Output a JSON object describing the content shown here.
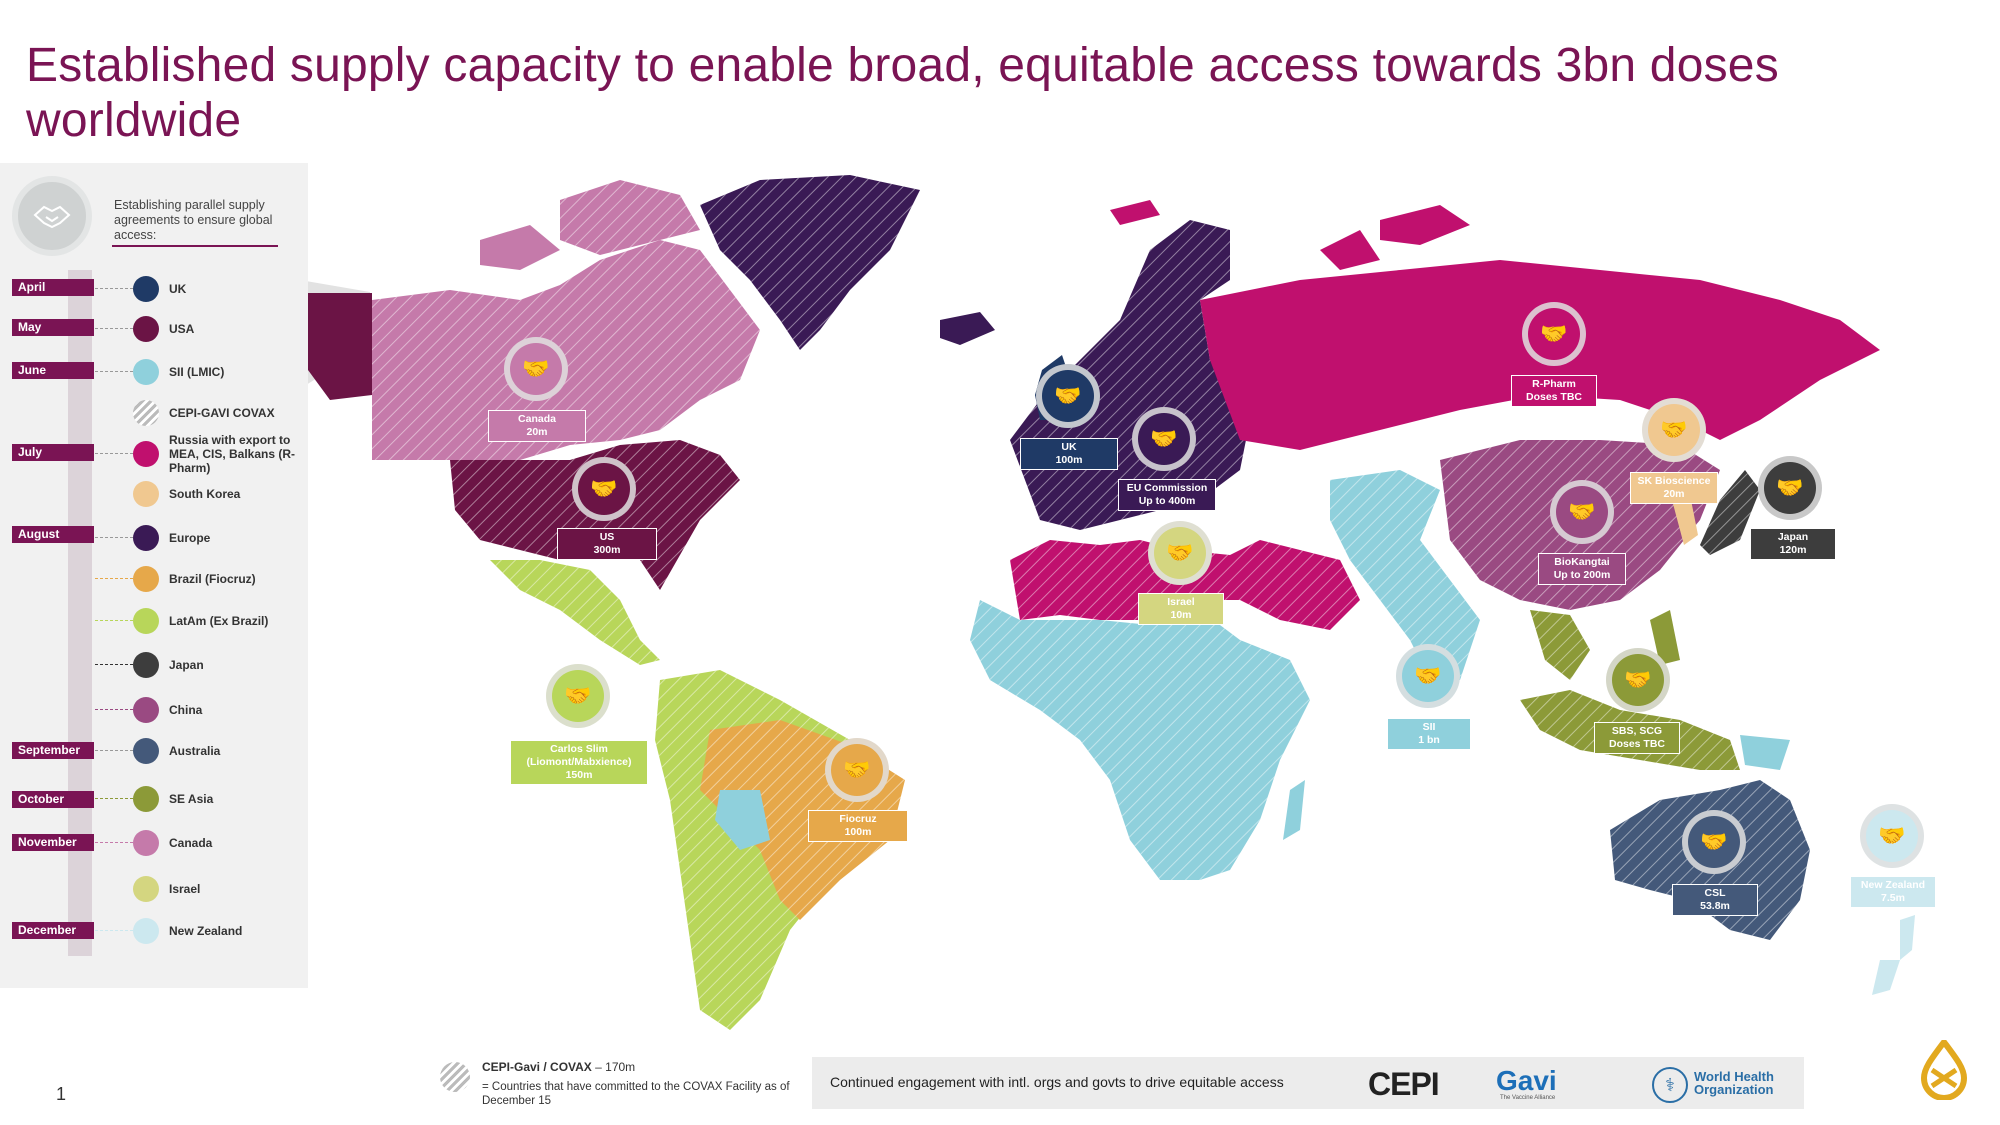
{
  "title": "Established supply capacity to enable broad, equitable access towards 3bn doses worldwide",
  "legend": {
    "heading": "Establishing parallel supply agreements to ensure global access:",
    "heading_icon": "handshake-icon",
    "months": [
      {
        "label": "April"
      },
      {
        "label": "May"
      },
      {
        "label": "June"
      },
      {
        "label": "July"
      },
      {
        "label": "August"
      },
      {
        "label": "September"
      },
      {
        "label": "October"
      },
      {
        "label": "November"
      },
      {
        "label": "December"
      }
    ],
    "items": [
      {
        "label": "UK",
        "color": "#1f3a66"
      },
      {
        "label": "USA",
        "color": "#6b1445"
      },
      {
        "label": "SII (LMIC)",
        "color": "#8fd0dc"
      },
      {
        "label": "CEPI-GAVI COVAX",
        "color": "hatched"
      },
      {
        "label": "Russia with export to MEA, CIS, Balkans (R-Pharm)",
        "color": "#c0106e"
      },
      {
        "label": "South Korea",
        "color": "#f0c890"
      },
      {
        "label": "Europe",
        "color": "#3a1a55"
      },
      {
        "label": "Brazil (Fiocruz)",
        "color": "#e6a84a"
      },
      {
        "label": "LatAm (Ex Brazil)",
        "color": "#b8d65a"
      },
      {
        "label": "Japan",
        "color": "#3d3d3d"
      },
      {
        "label": "China",
        "color": "#9a4a82"
      },
      {
        "label": "Australia",
        "color": "#44597a"
      },
      {
        "label": "SE Asia",
        "color": "#8c9a38"
      },
      {
        "label": "Canada",
        "color": "#c57aaa"
      },
      {
        "label": "Israel",
        "color": "#d4d680"
      },
      {
        "label": "New Zealand",
        "color": "#cce8ef"
      }
    ]
  },
  "markers": [
    {
      "id": "canada",
      "line1": "Canada",
      "line2": "20m",
      "color": "#c57aaa"
    },
    {
      "id": "us",
      "line1": "US",
      "line2": "300m",
      "color": "#6b1445"
    },
    {
      "id": "carlos-slim",
      "line1": "Carlos Slim",
      "line2": "(Liomont/Mabxience)",
      "line3": "150m",
      "color": "#b8d65a"
    },
    {
      "id": "fiocruz",
      "line1": "Fiocruz",
      "line2": "100m",
      "color": "#e6a84a"
    },
    {
      "id": "uk",
      "line1": "UK",
      "line2": "100m",
      "color": "#1f3a66"
    },
    {
      "id": "eu",
      "line1": "EU Commission",
      "line2": "Up to 400m",
      "color": "#3a1a55"
    },
    {
      "id": "israel",
      "line1": "Israel",
      "line2": "10m",
      "color": "#d4d680"
    },
    {
      "id": "r-pharm",
      "line1": "R-Pharm",
      "line2": "Doses TBC",
      "color": "#c0106e"
    },
    {
      "id": "sk-bioscience",
      "line1": "SK Bioscience",
      "line2": "20m",
      "color": "#f0c890"
    },
    {
      "id": "japan",
      "line1": "Japan",
      "line2": "120m",
      "color": "#3d3d3d"
    },
    {
      "id": "biokangtai",
      "line1": "BioKangtai",
      "line2": "Up to 200m",
      "color": "#9a4a82"
    },
    {
      "id": "sii",
      "line1": "SII",
      "line2": "1 bn",
      "color": "#8fd0dc"
    },
    {
      "id": "sbs-scg",
      "line1": "SBS, SCG",
      "line2": "Doses TBC",
      "color": "#8c9a38"
    },
    {
      "id": "csl",
      "line1": "CSL",
      "line2": "53.8m",
      "color": "#44597a"
    },
    {
      "id": "new-zealand",
      "line1": "New Zealand",
      "line2": "7.5m",
      "color": "#cce8ef"
    }
  ],
  "footer": {
    "page_number": "1",
    "covax_label": "CEPI-Gavi / COVAX",
    "covax_value": "– 170m",
    "covax_note": "= Countries that have committed to the COVAX Facility as of December 15",
    "engagement": "Continued engagement with intl. orgs and govts to drive equitable access",
    "logos": {
      "cepi": "CEPI",
      "gavi": "Gavi",
      "gavi_sub": "The Vaccine Alliance",
      "who_line1": "World Health",
      "who_line2": "Organization"
    }
  }
}
